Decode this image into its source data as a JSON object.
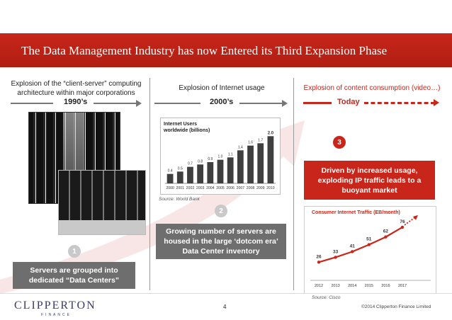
{
  "title": "The Data Management Industry has now Entered its Third Expansion Phase",
  "columns": [
    {
      "heading": "Explosion of the “client-server” computing architecture within major corporations",
      "era": "1990’s"
    },
    {
      "heading": "Explosion of Internet usage",
      "era": "2000’s"
    },
    {
      "heading": "Explosion of content consumption (video…)",
      "era": "Today"
    }
  ],
  "steps": [
    {
      "number": "1",
      "text": "Servers are grouped into dedicated “Data Centers”"
    },
    {
      "number": "2",
      "text": "Growing number of servers are housed in the large ‘dotcom era’ Data Center inventory"
    },
    {
      "number": "3",
      "text": "Driven by increased usage, exploding IP traffic leads to a buoyant market"
    }
  ],
  "internet_chart_source": "Source: World Bank",
  "traffic_chart_source": "Source: Cisco",
  "colors": {
    "accent": "#c8261a",
    "grey_box": "#6e6e6e",
    "bar": "#3f3f3f"
  },
  "chart_data": [
    {
      "type": "bar",
      "title": "Internet Users worldwide (billions)",
      "categories": [
        "2000",
        "2001",
        "2002",
        "2003",
        "2004",
        "2005",
        "2006",
        "2007",
        "2008",
        "2009",
        "2010"
      ],
      "values": [
        0.4,
        0.5,
        0.7,
        0.8,
        0.9,
        1.0,
        1.1,
        1.4,
        1.6,
        1.7,
        2.0
      ],
      "value_labels": [
        "0.4",
        "0.5",
        "0.7",
        "0.8",
        "0.9",
        "1.0",
        "1.1",
        "1.4",
        "1.6",
        "1.7",
        "2.0"
      ],
      "ylim": [
        0,
        2.1
      ]
    },
    {
      "type": "line",
      "title": "Consumer Internet Traffic (EB/month)",
      "categories": [
        "2012",
        "2013",
        "2014",
        "2015",
        "2016",
        "2017"
      ],
      "values": [
        26,
        33,
        41,
        51,
        62,
        76
      ],
      "ylim": [
        0,
        85
      ]
    }
  ],
  "footer": {
    "logo": "CLIPPERTON",
    "logo_sub": "FINANCE",
    "page": "4",
    "copyright": "©2014 Clipperton Finance Limited"
  }
}
